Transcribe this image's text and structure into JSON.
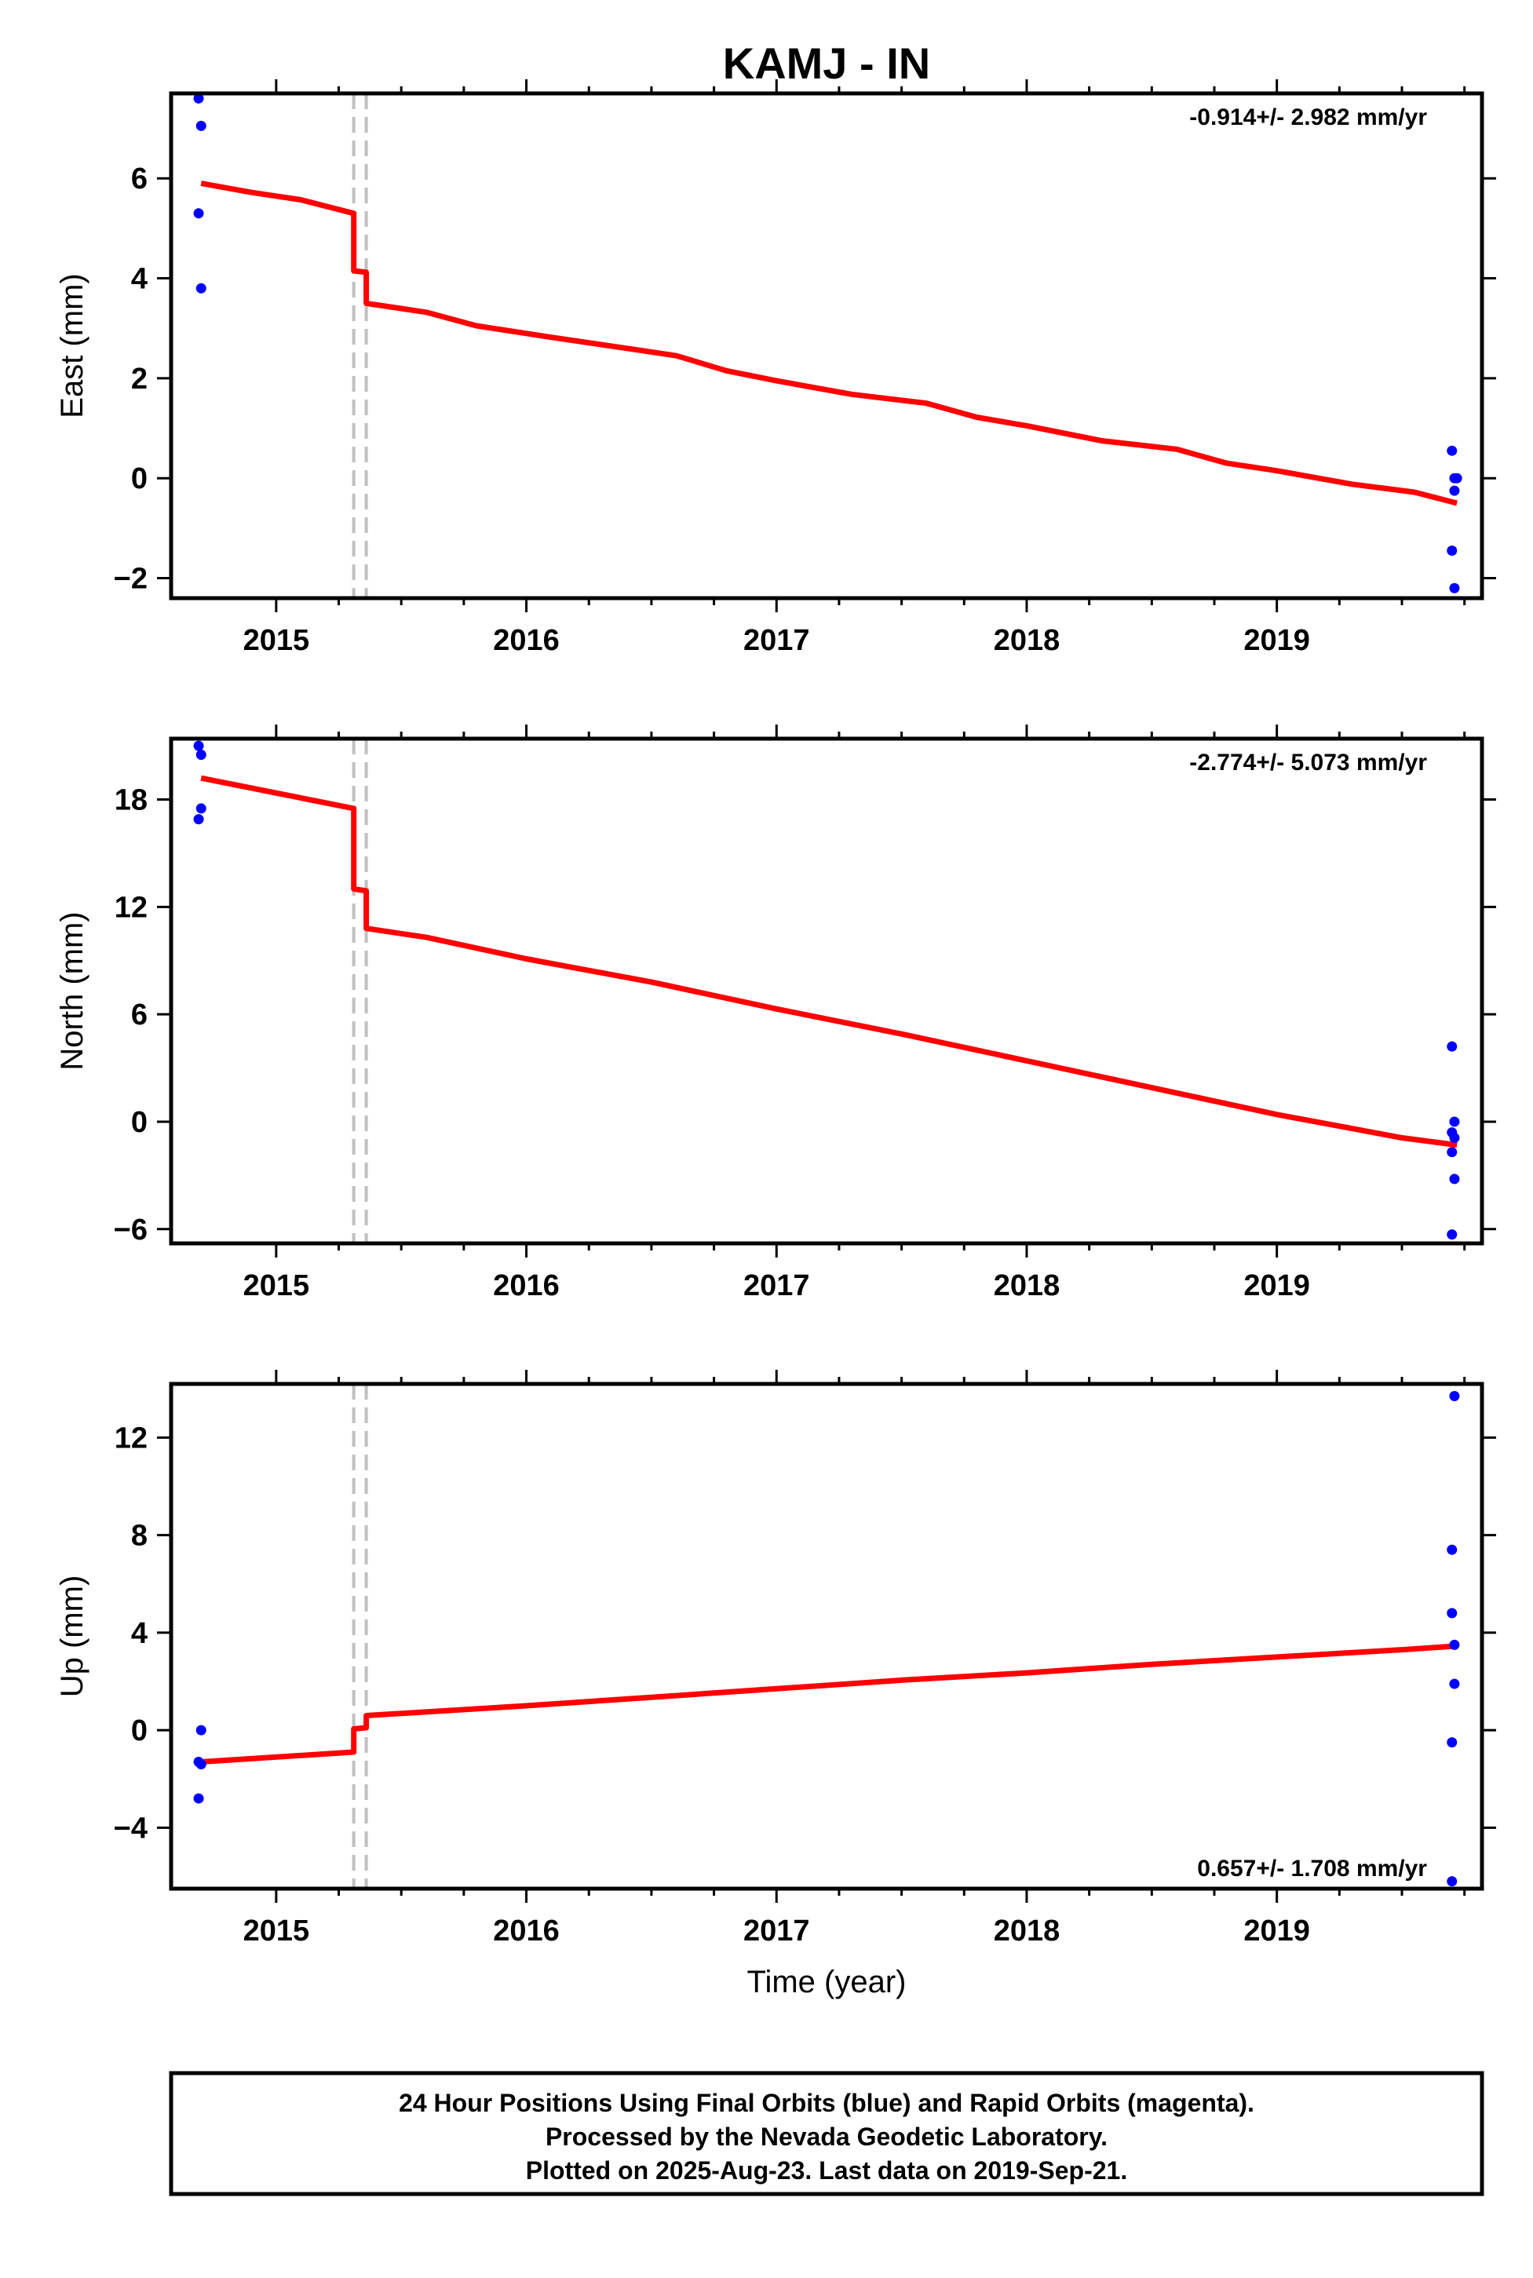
{
  "chart_data": {
    "type": "scatter",
    "title": "KAMJ - IN",
    "xlabel": "Time (year)",
    "xlim": [
      2014.58,
      2019.82
    ],
    "x_ticks": [
      2015,
      2016,
      2017,
      2018,
      2019
    ],
    "offset_epochs": [
      2015.31,
      2015.36
    ],
    "colors": {
      "data": "#0000ff",
      "model": "#ff0000",
      "offset": "#c0c0c0"
    },
    "panels": [
      {
        "ylabel": "East (mm)",
        "ylim": [
          -2.4,
          7.7
        ],
        "y_ticks": [
          -2,
          0,
          2,
          4,
          6
        ],
        "y_tick_labels": [
          "−2",
          "0",
          "2",
          "4",
          "6"
        ],
        "rate": "-0.914+/- 2.982 mm/yr",
        "rate_position": "top-right",
        "points": {
          "x": [
            2014.69,
            2014.7,
            2014.69,
            2014.7,
            2019.7,
            2019.71,
            2019.72,
            2019.71,
            2019.7,
            2019.71
          ],
          "y": [
            7.6,
            7.05,
            5.3,
            3.8,
            0.55,
            0.0,
            0.0,
            -0.25,
            -1.45,
            -2.2
          ]
        },
        "model": {
          "x": [
            2014.7,
            2014.9,
            2015.1,
            2015.31,
            2015.31,
            2015.36,
            2015.36,
            2015.6,
            2015.8,
            2016.1,
            2016.4,
            2016.6,
            2016.8,
            2017.0,
            2017.3,
            2017.6,
            2017.8,
            2018.0,
            2018.3,
            2018.6,
            2018.8,
            2019.0,
            2019.3,
            2019.55,
            2019.72
          ],
          "y": [
            5.9,
            5.72,
            5.57,
            5.3,
            4.15,
            4.12,
            3.5,
            3.32,
            3.05,
            2.82,
            2.6,
            2.45,
            2.15,
            1.95,
            1.68,
            1.5,
            1.22,
            1.05,
            0.75,
            0.58,
            0.3,
            0.15,
            -0.12,
            -0.28,
            -0.5
          ]
        }
      },
      {
        "ylabel": "North (mm)",
        "ylim": [
          -6.8,
          21.4
        ],
        "y_ticks": [
          -6,
          0,
          6,
          12,
          18
        ],
        "y_tick_labels": [
          "−6",
          "0",
          "6",
          "12",
          "18"
        ],
        "rate": "-2.774+/- 5.073 mm/yr",
        "rate_position": "top-right",
        "points": {
          "x": [
            2014.69,
            2014.7,
            2014.7,
            2014.69,
            2019.7,
            2019.71,
            2019.7,
            2019.71,
            2019.7,
            2019.71,
            2019.7
          ],
          "y": [
            21.0,
            20.5,
            17.5,
            16.9,
            4.2,
            0.0,
            -0.6,
            -0.9,
            -1.7,
            -3.2,
            -6.3
          ]
        },
        "model": {
          "x": [
            2014.7,
            2015.31,
            2015.31,
            2015.36,
            2015.36,
            2015.6,
            2016.0,
            2016.5,
            2017.0,
            2017.5,
            2018.0,
            2018.5,
            2019.0,
            2019.5,
            2019.72
          ],
          "y": [
            19.2,
            17.5,
            13.0,
            12.9,
            10.8,
            10.3,
            9.1,
            7.8,
            6.3,
            4.9,
            3.4,
            1.9,
            0.4,
            -0.9,
            -1.3
          ]
        }
      },
      {
        "ylabel": "Up (mm)",
        "ylim": [
          -6.5,
          14.2
        ],
        "y_ticks": [
          -4,
          0,
          4,
          8,
          12
        ],
        "y_tick_labels": [
          "−4",
          "0",
          "4",
          "8",
          "12"
        ],
        "rate": "0.657+/- 1.708 mm/yr",
        "rate_position": "bottom-right",
        "points": {
          "x": [
            2014.7,
            2014.69,
            2014.7,
            2014.69,
            2019.71,
            2019.7,
            2019.7,
            2019.71,
            2019.71,
            2019.7,
            2019.7
          ],
          "y": [
            0.0,
            -1.3,
            -1.4,
            -2.8,
            13.7,
            7.4,
            4.8,
            3.5,
            1.9,
            -0.5,
            -6.2
          ]
        },
        "model": {
          "x": [
            2014.7,
            2015.31,
            2015.31,
            2015.36,
            2015.36,
            2016.0,
            2016.5,
            2017.0,
            2017.5,
            2018.0,
            2018.5,
            2019.0,
            2019.5,
            2019.72
          ],
          "y": [
            -1.3,
            -0.9,
            0.05,
            0.1,
            0.6,
            1.0,
            1.35,
            1.7,
            2.05,
            2.35,
            2.7,
            3.0,
            3.3,
            3.45
          ]
        }
      }
    ],
    "footer": [
      "24 Hour Positions Using Final Orbits (blue) and Rapid Orbits (magenta).",
      "Processed by the Nevada Geodetic Laboratory.",
      "Plotted on 2025-Aug-23. Last data on 2019-Sep-21."
    ]
  }
}
